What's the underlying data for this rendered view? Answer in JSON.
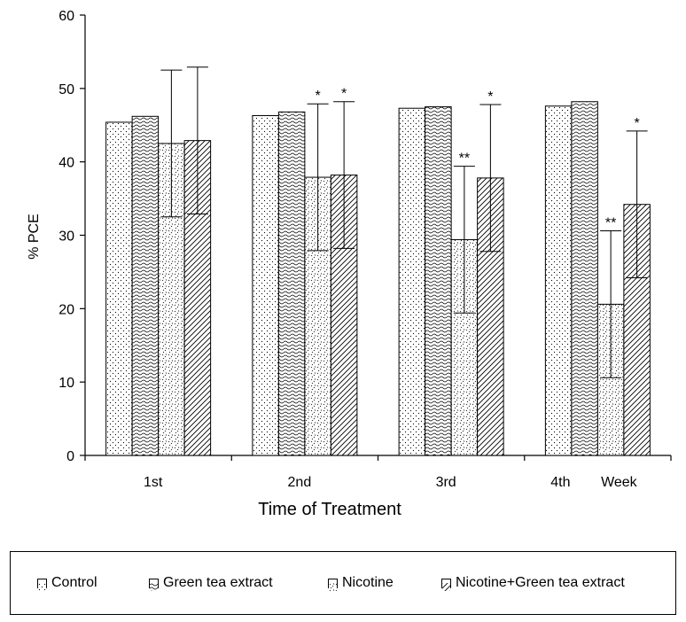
{
  "chart_data": {
    "type": "bar",
    "title": "",
    "xlabel": "Time of Treatment",
    "ylabel": "% PCE",
    "ylim": [
      0,
      60
    ],
    "yticks": [
      0,
      10,
      20,
      30,
      40,
      50,
      60
    ],
    "categories": [
      "1st",
      "2nd",
      "3rd",
      "4th"
    ],
    "category_suffix": "Week",
    "grid": false,
    "legend_position": "bottom",
    "series": [
      {
        "name": "Control",
        "values": [
          45.4,
          46.3,
          47.3,
          47.6
        ],
        "errors": [
          null,
          null,
          null,
          null
        ],
        "sig": [
          "",
          "",
          "",
          ""
        ],
        "pattern": "dots"
      },
      {
        "name": "Green tea extract",
        "values": [
          46.2,
          46.8,
          47.5,
          48.2
        ],
        "errors": [
          null,
          null,
          null,
          null
        ],
        "sig": [
          "",
          "",
          "",
          ""
        ],
        "pattern": "waves"
      },
      {
        "name": "Nicotine",
        "values": [
          42.5,
          37.9,
          29.4,
          20.6
        ],
        "errors": [
          10,
          10,
          10,
          10
        ],
        "sig": [
          "",
          "*",
          "**",
          "**"
        ],
        "pattern": "specks"
      },
      {
        "name": "Nicotine+Green tea extract",
        "values": [
          42.9,
          38.2,
          37.8,
          34.2
        ],
        "errors": [
          10,
          10,
          10,
          10
        ],
        "sig": [
          "",
          "*",
          "*",
          "*"
        ],
        "pattern": "hatch"
      }
    ]
  }
}
